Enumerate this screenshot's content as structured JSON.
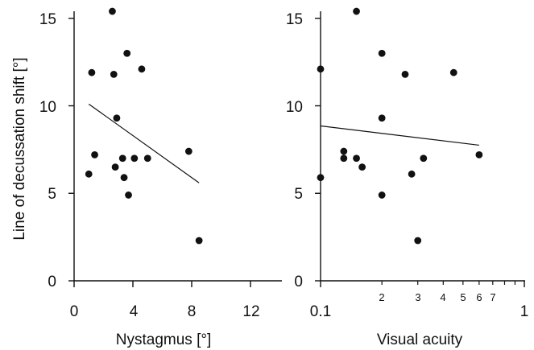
{
  "chart_data": [
    {
      "type": "scatter",
      "xlabel": "Nystagmus [°]",
      "ylabel": "Line of decussation shift [°]",
      "xlim": [
        0,
        14
      ],
      "ylim": [
        0,
        15.5
      ],
      "x_ticks": [
        "0",
        "4",
        "8",
        "12"
      ],
      "y_ticks": [
        "0",
        "5",
        "10",
        "15"
      ],
      "x": [
        1.0,
        1.2,
        1.4,
        2.6,
        2.7,
        2.8,
        2.9,
        3.3,
        3.4,
        3.6,
        3.7,
        4.1,
        4.6,
        5.0,
        7.8,
        8.5
      ],
      "y": [
        6.1,
        11.9,
        7.2,
        15.4,
        11.8,
        6.5,
        9.3,
        7.0,
        5.9,
        13.0,
        4.9,
        7.0,
        12.1,
        7.0,
        7.4,
        2.3
      ],
      "regression": {
        "x": [
          1.0,
          8.5
        ],
        "y": [
          10.1,
          5.6
        ]
      }
    },
    {
      "type": "scatter",
      "xlabel": "Visual acuity",
      "ylabel": "",
      "xscale": "log",
      "xlim": [
        0.1,
        1
      ],
      "ylim": [
        0,
        15.5
      ],
      "x_ticks": [
        "0.1",
        "1"
      ],
      "x_minor_ticks": [
        "2",
        "3",
        "4",
        "5",
        "6",
        "7"
      ],
      "y_ticks": [
        "0",
        "5",
        "10",
        "15"
      ],
      "x": [
        0.1,
        0.1,
        0.13,
        0.13,
        0.15,
        0.15,
        0.16,
        0.2,
        0.2,
        0.2,
        0.26,
        0.28,
        0.3,
        0.32,
        0.45,
        0.6
      ],
      "y": [
        12.1,
        5.9,
        7.4,
        7.0,
        15.4,
        7.0,
        6.5,
        13.0,
        9.3,
        4.9,
        11.8,
        6.1,
        2.3,
        7.0,
        11.9,
        7.2
      ],
      "regression": {
        "x": [
          0.1,
          0.6
        ],
        "y": [
          8.85,
          7.75
        ]
      }
    }
  ]
}
